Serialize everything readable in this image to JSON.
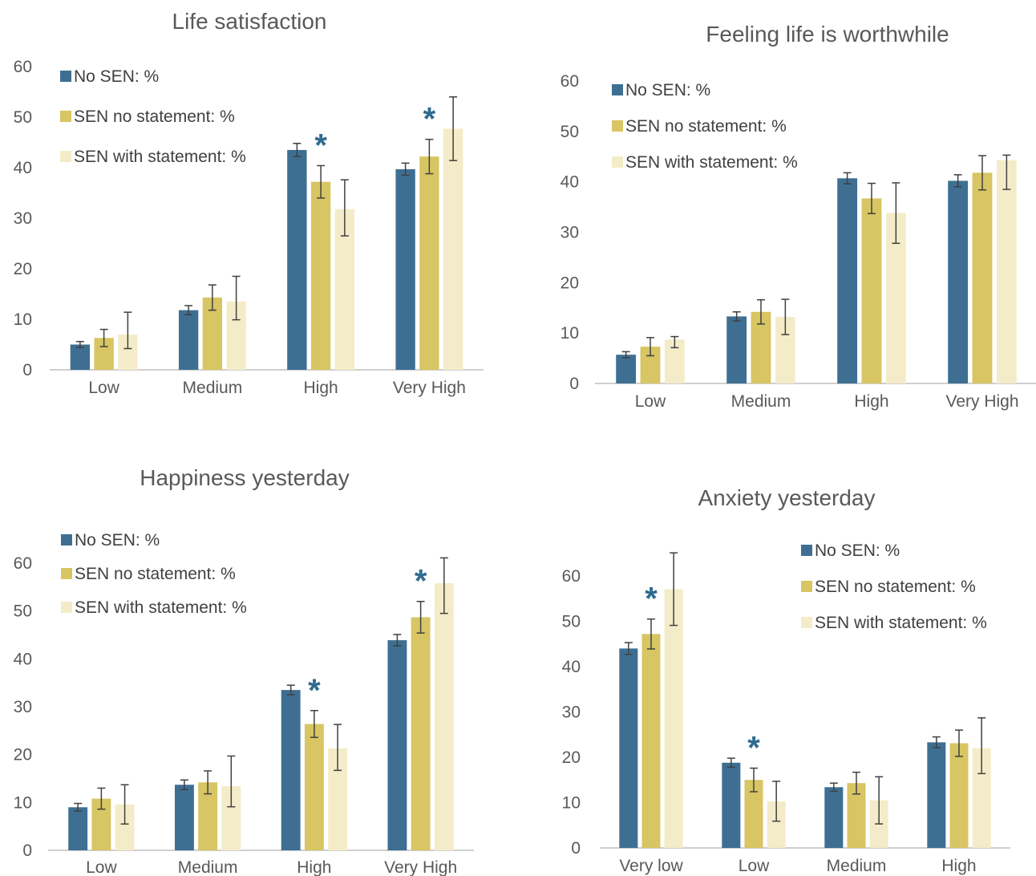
{
  "colors": {
    "no_sen": "#3e6f92",
    "sen_no_statement": "#d8c563",
    "sen_with_statement": "#f4ecc8",
    "axis": "#bfbfbf",
    "errorbar": "#404040",
    "star": "#2f6b8f"
  },
  "chart_data": [
    {
      "type": "bar",
      "title": "Life satisfaction",
      "categories": [
        "Low",
        "Medium",
        "High",
        "Very High"
      ],
      "yticks": [
        "0",
        "10",
        "20",
        "30",
        "40",
        "50",
        "60"
      ],
      "ylim": [
        0,
        60
      ],
      "legend_position": "top-left",
      "series": [
        {
          "name": "No SEN:  %",
          "values": [
            5.0,
            11.8,
            43.5,
            39.7
          ],
          "err_low": [
            0.6,
            0.9,
            1.3,
            1.2
          ],
          "err_high": [
            0.6,
            0.9,
            1.3,
            1.2
          ]
        },
        {
          "name": "SEN no statement:  %",
          "values": [
            6.3,
            14.3,
            37.2,
            42.2
          ],
          "err_low": [
            1.7,
            2.5,
            3.2,
            3.4
          ],
          "err_high": [
            1.7,
            2.5,
            3.2,
            3.4
          ]
        },
        {
          "name": "SEN with statement:  %",
          "values": [
            7.0,
            13.5,
            31.8,
            47.7
          ],
          "err_low": [
            2.8,
            3.6,
            5.3,
            6.3
          ],
          "err_high": [
            4.4,
            5.0,
            5.8,
            6.3
          ]
        }
      ],
      "stars": [
        "",
        "",
        "*",
        "*"
      ]
    },
    {
      "type": "bar",
      "title": "Feeling life is worthwhile",
      "categories": [
        "Low",
        "Medium",
        "High",
        "Very High"
      ],
      "yticks": [
        "0",
        "10",
        "20",
        "30",
        "40",
        "50",
        "60"
      ],
      "ylim": [
        0,
        60
      ],
      "legend_position": "top-left",
      "series": [
        {
          "name": "No SEN:  %",
          "values": [
            5.7,
            13.3,
            40.7,
            40.2
          ],
          "err_low": [
            0.6,
            0.9,
            1.1,
            1.2
          ],
          "err_high": [
            0.6,
            0.9,
            1.1,
            1.2
          ]
        },
        {
          "name": "SEN no statement:  %",
          "values": [
            7.3,
            14.2,
            36.7,
            41.8
          ],
          "err_low": [
            1.8,
            2.4,
            3.0,
            3.4
          ],
          "err_high": [
            1.8,
            2.4,
            3.0,
            3.4
          ]
        },
        {
          "name": "SEN with statement:  %",
          "values": [
            8.7,
            13.2,
            33.8,
            44.3
          ],
          "err_low": [
            1.6,
            3.5,
            6.0,
            5.8
          ],
          "err_high": [
            0.6,
            3.5,
            6.0,
            1.0
          ]
        }
      ],
      "stars": [
        "",
        "",
        "",
        ""
      ]
    },
    {
      "type": "bar",
      "title": "Happiness yesterday",
      "categories": [
        "Low",
        "Medium",
        "High",
        "Very High"
      ],
      "yticks": [
        "0",
        "10",
        "20",
        "30",
        "40",
        "50",
        "60"
      ],
      "ylim": [
        0,
        60
      ],
      "legend_position": "top-left",
      "series": [
        {
          "name": "No SEN:  %",
          "values": [
            9.0,
            13.7,
            33.5,
            43.9
          ],
          "err_low": [
            0.8,
            1.0,
            1.0,
            1.2
          ],
          "err_high": [
            0.8,
            1.0,
            1.0,
            1.2
          ]
        },
        {
          "name": "SEN no statement:  %",
          "values": [
            10.8,
            14.2,
            26.4,
            48.7
          ],
          "err_low": [
            2.2,
            2.4,
            2.8,
            3.3
          ],
          "err_high": [
            2.2,
            2.4,
            2.8,
            3.3
          ]
        },
        {
          "name": "SEN with statement:  %",
          "values": [
            9.6,
            13.4,
            21.3,
            55.8
          ],
          "err_low": [
            4.1,
            4.3,
            4.6,
            6.3
          ],
          "err_high": [
            4.1,
            6.3,
            5.0,
            5.3
          ]
        }
      ],
      "stars": [
        "",
        "",
        "*",
        "*"
      ]
    },
    {
      "type": "bar",
      "title": "Anxiety yesterday",
      "categories": [
        "Very low",
        "Low",
        "Medium",
        "High"
      ],
      "yticks": [
        "0",
        "10",
        "20",
        "30",
        "40",
        "50",
        "60"
      ],
      "ylim": [
        0,
        60
      ],
      "legend_position": "top-right",
      "series": [
        {
          "name": "No SEN:  %",
          "values": [
            44.0,
            18.8,
            13.4,
            23.3
          ],
          "err_low": [
            1.3,
            1.0,
            0.9,
            1.2
          ],
          "err_high": [
            1.3,
            1.0,
            0.9,
            1.2
          ]
        },
        {
          "name": "SEN no statement:  %",
          "values": [
            47.2,
            15.0,
            14.3,
            23.1
          ],
          "err_low": [
            3.3,
            2.6,
            2.4,
            2.9
          ],
          "err_high": [
            3.3,
            2.6,
            2.4,
            2.9
          ]
        },
        {
          "name": "SEN with statement:  %",
          "values": [
            57.1,
            10.3,
            10.5,
            22.0
          ],
          "err_low": [
            8.0,
            4.4,
            5.2,
            5.6
          ],
          "err_high": [
            8.0,
            4.4,
            5.2,
            6.7
          ]
        }
      ],
      "stars": [
        "*",
        "*",
        "",
        ""
      ]
    }
  ]
}
